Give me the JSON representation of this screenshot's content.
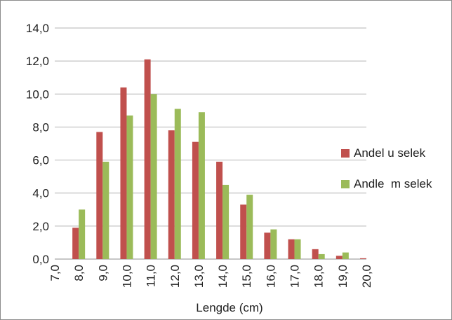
{
  "chart_data": {
    "type": "bar",
    "categories": [
      "7,0",
      "8,0",
      "9,0",
      "10,0",
      "11,0",
      "12,0",
      "13,0",
      "14,0",
      "15,0",
      "16,0",
      "17,0",
      "18,0",
      "19,0",
      "20,0"
    ],
    "series": [
      {
        "name": "Andel u selek",
        "color": "#c0504d",
        "values": [
          0,
          1.9,
          7.7,
          10.4,
          12.1,
          7.8,
          7.1,
          5.9,
          3.3,
          1.6,
          1.2,
          0.6,
          0.2,
          0.05
        ]
      },
      {
        "name": "Andle  m selek",
        "color": "#9bbb59",
        "values": [
          0,
          3.0,
          5.9,
          8.7,
          10.0,
          9.1,
          8.9,
          4.5,
          3.9,
          1.8,
          1.2,
          0.3,
          0.4,
          0
        ]
      }
    ],
    "yticks": [
      "0,0",
      "2,0",
      "4,0",
      "6,0",
      "8,0",
      "10,0",
      "12,0",
      "14,0"
    ],
    "ylim": [
      0,
      14
    ],
    "xlabel": "Lengde (cm)",
    "ylabel": "",
    "title": "",
    "grid": true,
    "legend_position": "right"
  }
}
